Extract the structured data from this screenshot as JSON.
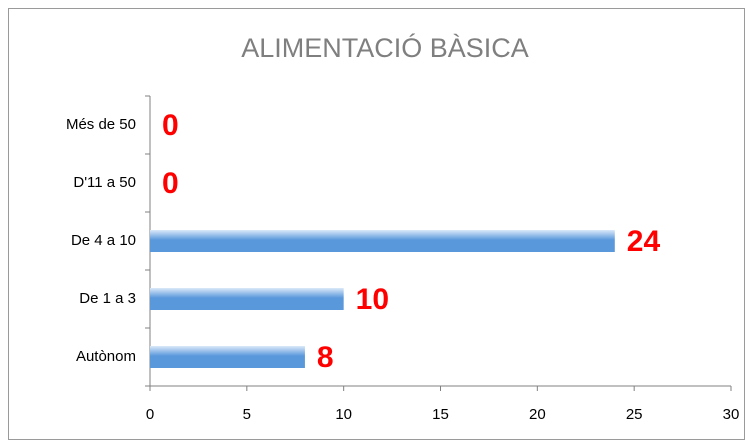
{
  "chart_data": {
    "type": "hbar",
    "title": "ALIMENTACIÓ BÀSICA",
    "categories": [
      "Autònom",
      "De 1 a 3",
      "De 4 a 10",
      "D'11 a 50",
      "Més de 50"
    ],
    "values": [
      8,
      10,
      24,
      0,
      0
    ],
    "color": "#5a98dc",
    "label_color": "#ff0000",
    "xlim": [
      0,
      30
    ],
    "xticks": [
      0,
      5,
      10,
      15,
      20,
      25,
      30
    ],
    "grid": false
  }
}
